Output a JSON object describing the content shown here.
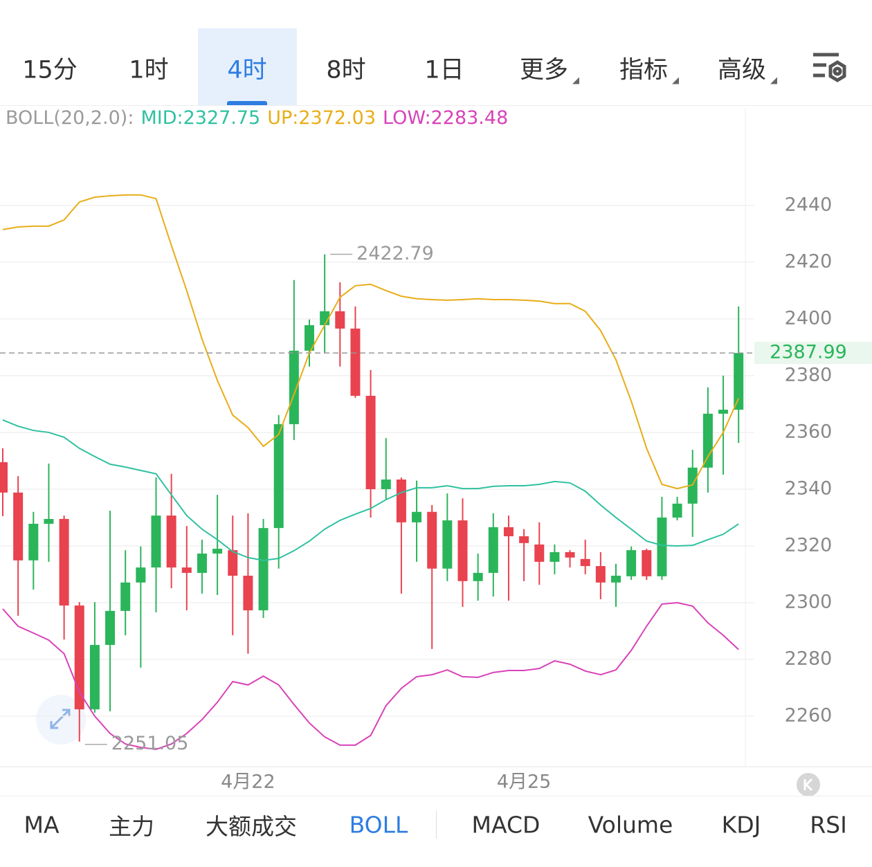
{
  "top_tabs": {
    "items": [
      "15分",
      "1时",
      "4时",
      "8时",
      "1日",
      "更多",
      "指标",
      "高级"
    ],
    "selected": 2
  },
  "chart_data": {
    "type": "candlestick",
    "indicator_label": "BOLL(20,2.0):",
    "categories": [
      null,
      null,
      null,
      null,
      null,
      null,
      null,
      null,
      null,
      null,
      null,
      null,
      null,
      null,
      null,
      null,
      "4月22",
      null,
      null,
      null,
      null,
      null,
      null,
      null,
      null,
      null,
      null,
      null,
      null,
      null,
      null,
      null,
      null,
      null,
      "4月25",
      null,
      null,
      null,
      null,
      null,
      null,
      null,
      null,
      null,
      null,
      null,
      null,
      null,
      null
    ],
    "open": [
      2349.5,
      2338.8,
      2314.9,
      2327.8,
      2329.5,
      2299,
      2262.4,
      2285.1,
      2297.1,
      2307.1,
      2312.4,
      2330.7,
      2312.4,
      2310.5,
      2317.3,
      2318.5,
      2309.5,
      2297.3,
      2326.3,
      2362.9,
      2388.8,
      2397.8,
      2402.7,
      2396.6,
      2372.9,
      2340,
      2343.4,
      2328.3,
      2332,
      2312,
      2329,
      2307.6,
      2310.5,
      2326.6,
      2323.4,
      2320.5,
      2314.4,
      2317.8,
      2315.4,
      2312.9,
      2307.1,
      2309.3,
      2318.5,
      2309.3,
      2330,
      2334.9,
      2347.6,
      2366.6,
      2368
    ],
    "high": [
      2354.4,
      2344.6,
      2332,
      2349,
      2330.7,
      2300.2,
      2300.2,
      2332.4,
      2318.5,
      2319.8,
      2344.1,
      2345.4,
      2327,
      2322.2,
      2338,
      2330.7,
      2331.5,
      2329.5,
      2366.1,
      2413.7,
      2399.8,
      2422.79,
      2412.9,
      2404.4,
      2382,
      2358,
      2344.1,
      2343,
      2334.4,
      2338.5,
      2336.8,
      2317.3,
      2331.5,
      2330.7,
      2325.9,
      2328.3,
      2320.5,
      2318.5,
      2322.2,
      2317.8,
      2313.7,
      2319.8,
      2319,
      2337.3,
      2337.3,
      2353.9,
      2375.9,
      2380,
      2404.4
    ],
    "low": [
      2330.5,
      2295.4,
      2304.6,
      2314.4,
      2287,
      2251.05,
      2261.2,
      2261.7,
      2288.5,
      2277.1,
      2296.6,
      2305.1,
      2297.3,
      2303.2,
      2302.7,
      2288.5,
      2282,
      2294.6,
      2312,
      2357.3,
      2383.2,
      2388,
      2383.2,
      2372.2,
      2330,
      2336.3,
      2303.2,
      2314.4,
      2283.7,
      2307.6,
      2298.5,
      2300.7,
      2302.2,
      2300.7,
      2307.6,
      2306.3,
      2310,
      2312.4,
      2310,
      2301.2,
      2298.5,
      2308,
      2308,
      2308,
      2329,
      2323.2,
      2338.8,
      2345.1,
      2356.3
    ],
    "close": [
      2338.8,
      2314.9,
      2327.8,
      2329.5,
      2299,
      2262.4,
      2285.1,
      2297.1,
      2307.1,
      2312.4,
      2330.7,
      2312.4,
      2310.5,
      2317.3,
      2319,
      2309.5,
      2297.3,
      2326.3,
      2362.9,
      2388.8,
      2397.8,
      2402.7,
      2396.6,
      2372.9,
      2340,
      2343.4,
      2328.3,
      2332,
      2312,
      2329,
      2307.6,
      2310.5,
      2326.6,
      2323.4,
      2321,
      2314.4,
      2317.8,
      2315.9,
      2312.9,
      2307.1,
      2309.5,
      2318.5,
      2309.3,
      2330,
      2334.9,
      2347.6,
      2366.6,
      2368,
      2387.99
    ],
    "up_color": "#2bb55a",
    "down_color": "#e8434f",
    "series": [
      {
        "name": "MID:2327.75",
        "color": "#2fc1a0",
        "values": [
          2364.4,
          2362.2,
          2360.7,
          2360,
          2358.3,
          2354.4,
          2351.5,
          2348.8,
          2347.8,
          2346.6,
          2345.4,
          2338,
          2330.7,
          2325.9,
          2322.2,
          2318,
          2315.9,
          2314.9,
          2315.6,
          2318.3,
          2321.7,
          2325.9,
          2329,
          2331.2,
          2333.2,
          2336.3,
          2338.8,
          2340.5,
          2340.5,
          2341.2,
          2340.2,
          2340.2,
          2341,
          2341.2,
          2341.2,
          2341.7,
          2342.7,
          2342.2,
          2339.3,
          2334.4,
          2330,
          2325.9,
          2321.7,
          2320.2,
          2320,
          2320.2,
          2322.2,
          2324.1,
          2327.75
        ]
      },
      {
        "name": "UP:2372.03",
        "color": "#e8ad17",
        "values": [
          2431.5,
          2432.4,
          2432.7,
          2432.7,
          2434.9,
          2441.2,
          2442.9,
          2443.4,
          2443.7,
          2443.7,
          2442.4,
          2425.9,
          2410,
          2392.9,
          2378.3,
          2366.1,
          2361.7,
          2355.1,
          2359.3,
          2373.4,
          2388,
          2397.8,
          2407.6,
          2411.7,
          2412.2,
          2410,
          2408,
          2407.1,
          2406.8,
          2406.6,
          2406.8,
          2407.1,
          2406.8,
          2406.8,
          2406.6,
          2406.3,
          2405.4,
          2405.4,
          2402.7,
          2395.9,
          2385.6,
          2371,
          2354.4,
          2341.7,
          2340.2,
          2341.5,
          2351.5,
          2360,
          2372.03
        ]
      },
      {
        "name": "LOW:2283.48",
        "color": "#d842b8",
        "values": [
          2297.8,
          2291.7,
          2289.3,
          2286.8,
          2282,
          2268.5,
          2260,
          2253.9,
          2250.2,
          2249,
          2248.3,
          2250.2,
          2253.9,
          2258.8,
          2264.9,
          2272.2,
          2271,
          2274.1,
          2271,
          2264.1,
          2257.6,
          2252.7,
          2249.8,
          2249.8,
          2253.2,
          2263.7,
          2269.8,
          2273.9,
          2274.6,
          2276.3,
          2273.9,
          2273.7,
          2275.4,
          2276.1,
          2276.1,
          2276.8,
          2279.5,
          2278.3,
          2275.9,
          2274.6,
          2276.3,
          2283.2,
          2291.7,
          2299.5,
          2300,
          2298.8,
          2292.9,
          2288.5,
          2283.48
        ]
      }
    ],
    "ylim": [
      2242.2,
      2474.6
    ],
    "yticks": [
      2260,
      2280,
      2300,
      2320,
      2340,
      2360,
      2380,
      2400,
      2420,
      2440
    ],
    "grid": true,
    "last_price": 2387.99,
    "annotations": [
      2422.79,
      2251.05
    ]
  },
  "bottom_tabs": {
    "items": [
      "MA",
      "主力",
      "大额成交",
      "BOLL",
      "MACD",
      "Volume",
      "KDJ",
      "RSI"
    ],
    "selected": 3
  }
}
